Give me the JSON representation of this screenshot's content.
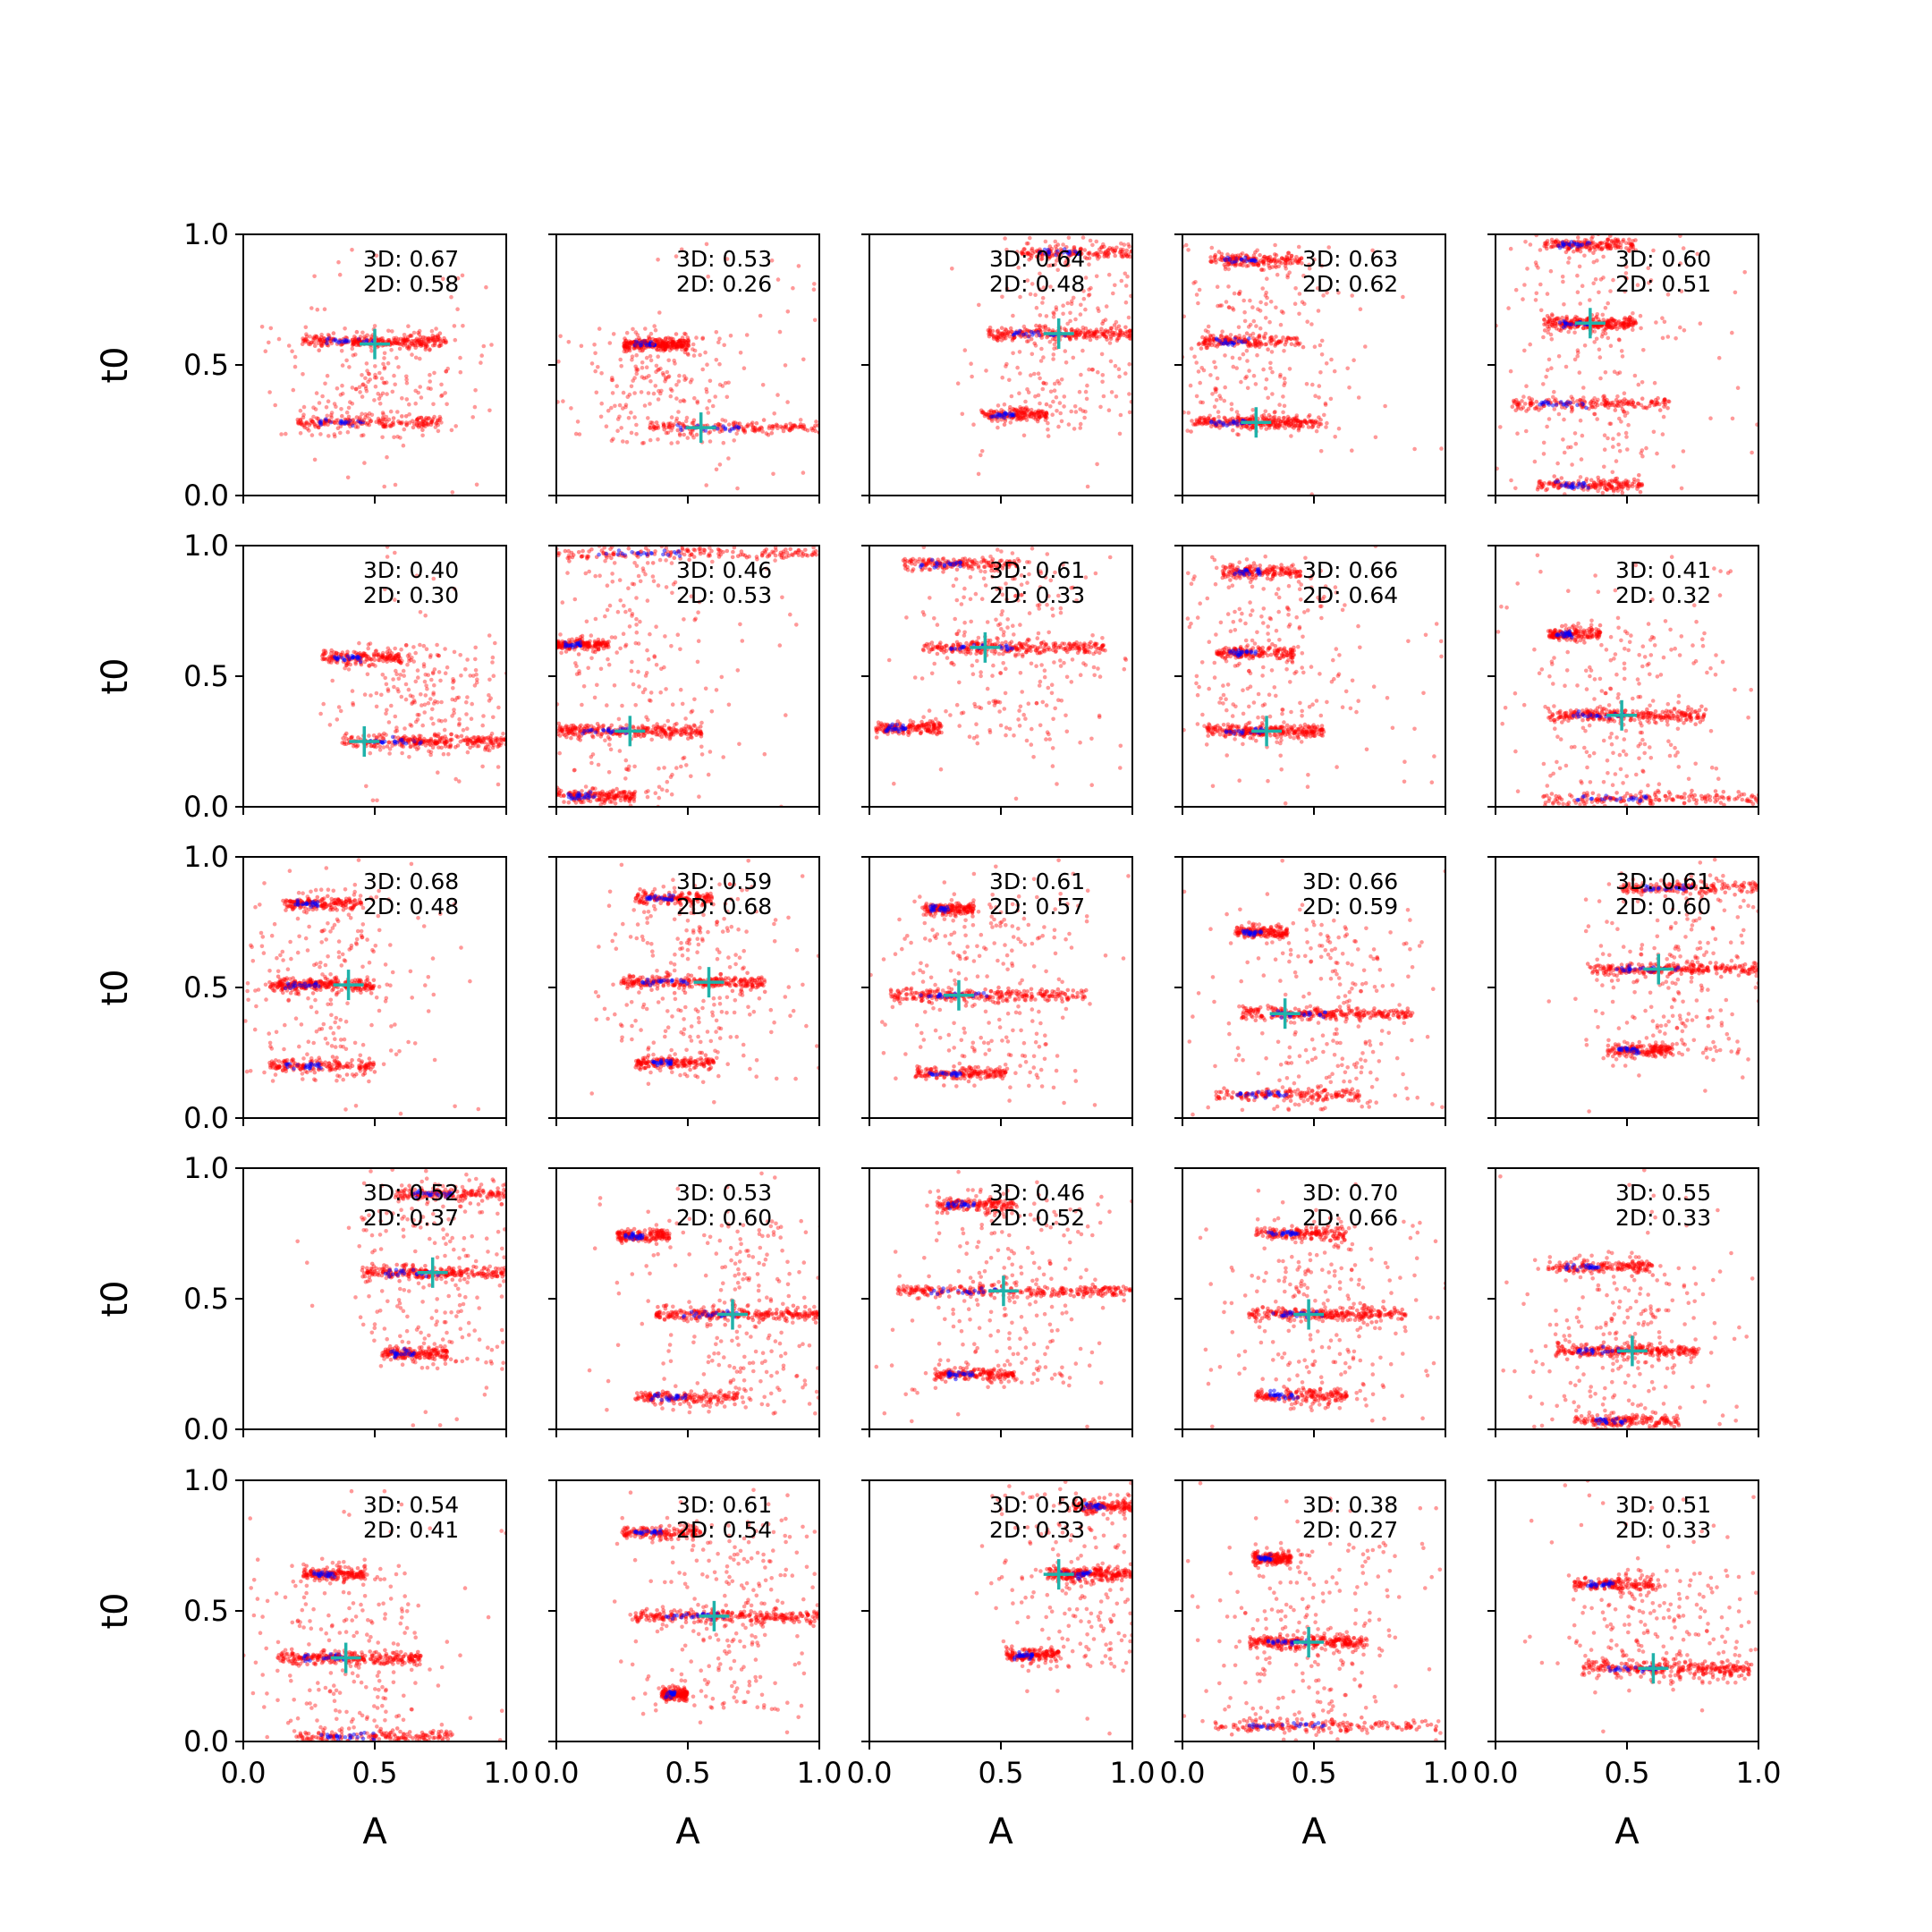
{
  "figure": {
    "xlabel": "A",
    "ylabel": "t0",
    "xlim": [
      0,
      1
    ],
    "ylim": [
      0,
      1
    ],
    "xticks": [
      "0.0",
      "0.5",
      "1.0"
    ],
    "yticks": [
      "0.0",
      "0.5",
      "1.0"
    ],
    "grid": false,
    "label_prefix_3d": "3D: ",
    "label_prefix_2d": "2D: ",
    "colors": {
      "sample_points": "#ff0000",
      "mode_points": "#0000ff",
      "estimate_marker": "#20b2aa",
      "axes": "#000000",
      "text": "#000000"
    }
  },
  "chart_data": [
    {
      "row": 1,
      "col": 1,
      "type": "scatter",
      "score_3d": "0.67",
      "score_2d": "0.58",
      "estimate": [
        0.5,
        0.58
      ],
      "a_range": [
        0.2,
        0.95
      ],
      "clusters": [
        {
          "a_center": 0.5,
          "t0": 0.59,
          "a_width": 0.55
        },
        {
          "a_center": 0.48,
          "t0": 0.28,
          "a_width": 0.55
        }
      ]
    },
    {
      "row": 1,
      "col": 2,
      "type": "scatter",
      "score_3d": "0.53",
      "score_2d": "0.26",
      "estimate": [
        0.55,
        0.26
      ],
      "a_range": [
        0.3,
        1.0
      ],
      "clusters": [
        {
          "a_center": 0.38,
          "t0": 0.58,
          "a_width": 0.25
        },
        {
          "a_center": 0.7,
          "t0": 0.26,
          "a_width": 0.7
        }
      ]
    },
    {
      "row": 1,
      "col": 3,
      "type": "scatter",
      "score_3d": "0.64",
      "score_2d": "0.48",
      "estimate": [
        0.72,
        0.62
      ],
      "a_range": [
        0.4,
        1.0
      ],
      "clusters": [
        {
          "a_center": 0.75,
          "t0": 0.62,
          "a_width": 0.6
        },
        {
          "a_center": 0.8,
          "t0": 0.93,
          "a_width": 0.45
        },
        {
          "a_center": 0.55,
          "t0": 0.31,
          "a_width": 0.25
        }
      ]
    },
    {
      "row": 1,
      "col": 4,
      "type": "scatter",
      "score_3d": "0.63",
      "score_2d": "0.62",
      "estimate": [
        0.28,
        0.28
      ],
      "a_range": [
        0.0,
        1.0
      ],
      "clusters": [
        {
          "a_center": 0.28,
          "t0": 0.28,
          "a_width": 0.5
        },
        {
          "a_center": 0.26,
          "t0": 0.59,
          "a_width": 0.4
        },
        {
          "a_center": 0.28,
          "t0": 0.9,
          "a_width": 0.35
        }
      ]
    },
    {
      "row": 1,
      "col": 5,
      "type": "scatter",
      "score_3d": "0.60",
      "score_2d": "0.51",
      "estimate": [
        0.36,
        0.66
      ],
      "a_range": [
        0.0,
        1.0
      ],
      "clusters": [
        {
          "a_center": 0.36,
          "t0": 0.66,
          "a_width": 0.35
        },
        {
          "a_center": 0.36,
          "t0": 0.35,
          "a_width": 0.6
        },
        {
          "a_center": 0.36,
          "t0": 0.96,
          "a_width": 0.35
        },
        {
          "a_center": 0.36,
          "t0": 0.04,
          "a_width": 0.4
        }
      ]
    },
    {
      "row": 2,
      "col": 1,
      "type": "scatter",
      "score_3d": "0.40",
      "score_2d": "0.30",
      "estimate": [
        0.46,
        0.25
      ],
      "a_range": [
        0.3,
        1.0
      ],
      "clusters": [
        {
          "a_center": 0.7,
          "t0": 0.25,
          "a_width": 0.65
        },
        {
          "a_center": 0.45,
          "t0": 0.57,
          "a_width": 0.3
        }
      ]
    },
    {
      "row": 2,
      "col": 2,
      "type": "scatter",
      "score_3d": "0.46",
      "score_2d": "0.53",
      "estimate": [
        0.28,
        0.29
      ],
      "a_range": [
        0.0,
        1.0
      ],
      "clusters": [
        {
          "a_center": 0.28,
          "t0": 0.29,
          "a_width": 0.55
        },
        {
          "a_center": 0.5,
          "t0": 0.97,
          "a_width": 1.0
        },
        {
          "a_center": 0.1,
          "t0": 0.62,
          "a_width": 0.2
        },
        {
          "a_center": 0.15,
          "t0": 0.04,
          "a_width": 0.3
        }
      ]
    },
    {
      "row": 2,
      "col": 3,
      "type": "scatter",
      "score_3d": "0.61",
      "score_2d": "0.33",
      "estimate": [
        0.44,
        0.61
      ],
      "a_range": [
        0.0,
        1.0
      ],
      "clusters": [
        {
          "a_center": 0.55,
          "t0": 0.61,
          "a_width": 0.7
        },
        {
          "a_center": 0.35,
          "t0": 0.93,
          "a_width": 0.45
        },
        {
          "a_center": 0.15,
          "t0": 0.3,
          "a_width": 0.25
        }
      ]
    },
    {
      "row": 2,
      "col": 4,
      "type": "scatter",
      "score_3d": "0.66",
      "score_2d": "0.64",
      "estimate": [
        0.32,
        0.29
      ],
      "a_range": [
        0.0,
        1.0
      ],
      "clusters": [
        {
          "a_center": 0.32,
          "t0": 0.29,
          "a_width": 0.45
        },
        {
          "a_center": 0.28,
          "t0": 0.59,
          "a_width": 0.3
        },
        {
          "a_center": 0.3,
          "t0": 0.9,
          "a_width": 0.3
        }
      ]
    },
    {
      "row": 2,
      "col": 5,
      "type": "scatter",
      "score_3d": "0.41",
      "score_2d": "0.32",
      "estimate": [
        0.48,
        0.35
      ],
      "a_range": [
        0.0,
        1.0
      ],
      "clusters": [
        {
          "a_center": 0.5,
          "t0": 0.35,
          "a_width": 0.6
        },
        {
          "a_center": 0.3,
          "t0": 0.66,
          "a_width": 0.2
        },
        {
          "a_center": 0.6,
          "t0": 0.03,
          "a_width": 0.85
        }
      ]
    },
    {
      "row": 3,
      "col": 1,
      "type": "scatter",
      "score_3d": "0.68",
      "score_2d": "0.48",
      "estimate": [
        0.4,
        0.51
      ],
      "a_range": [
        0.0,
        0.9
      ],
      "clusters": [
        {
          "a_center": 0.3,
          "t0": 0.51,
          "a_width": 0.4
        },
        {
          "a_center": 0.3,
          "t0": 0.2,
          "a_width": 0.4
        },
        {
          "a_center": 0.3,
          "t0": 0.82,
          "a_width": 0.3
        }
      ]
    },
    {
      "row": 3,
      "col": 2,
      "type": "scatter",
      "score_3d": "0.59",
      "score_2d": "0.68",
      "estimate": [
        0.58,
        0.52
      ],
      "a_range": [
        0.1,
        1.0
      ],
      "clusters": [
        {
          "a_center": 0.52,
          "t0": 0.52,
          "a_width": 0.55
        },
        {
          "a_center": 0.45,
          "t0": 0.21,
          "a_width": 0.3
        },
        {
          "a_center": 0.45,
          "t0": 0.84,
          "a_width": 0.3
        }
      ]
    },
    {
      "row": 3,
      "col": 3,
      "type": "scatter",
      "score_3d": "0.61",
      "score_2d": "0.57",
      "estimate": [
        0.34,
        0.47
      ],
      "a_range": [
        0.0,
        1.0
      ],
      "clusters": [
        {
          "a_center": 0.45,
          "t0": 0.47,
          "a_width": 0.75
        },
        {
          "a_center": 0.35,
          "t0": 0.17,
          "a_width": 0.35
        },
        {
          "a_center": 0.3,
          "t0": 0.8,
          "a_width": 0.2
        }
      ]
    },
    {
      "row": 3,
      "col": 4,
      "type": "scatter",
      "score_3d": "0.66",
      "score_2d": "0.59",
      "estimate": [
        0.39,
        0.4
      ],
      "a_range": [
        0.0,
        1.0
      ],
      "clusters": [
        {
          "a_center": 0.55,
          "t0": 0.4,
          "a_width": 0.65
        },
        {
          "a_center": 0.4,
          "t0": 0.09,
          "a_width": 0.55
        },
        {
          "a_center": 0.3,
          "t0": 0.71,
          "a_width": 0.2
        }
      ]
    },
    {
      "row": 3,
      "col": 5,
      "type": "scatter",
      "score_3d": "0.61",
      "score_2d": "0.60",
      "estimate": [
        0.62,
        0.57
      ],
      "a_range": [
        0.3,
        1.0
      ],
      "clusters": [
        {
          "a_center": 0.7,
          "t0": 0.57,
          "a_width": 0.7
        },
        {
          "a_center": 0.75,
          "t0": 0.88,
          "a_width": 0.55
        },
        {
          "a_center": 0.55,
          "t0": 0.26,
          "a_width": 0.25
        }
      ]
    },
    {
      "row": 4,
      "col": 1,
      "type": "scatter",
      "score_3d": "0.52",
      "score_2d": "0.37",
      "estimate": [
        0.72,
        0.6
      ],
      "a_range": [
        0.4,
        1.0
      ],
      "clusters": [
        {
          "a_center": 0.75,
          "t0": 0.6,
          "a_width": 0.6
        },
        {
          "a_center": 0.8,
          "t0": 0.9,
          "a_width": 0.45
        },
        {
          "a_center": 0.65,
          "t0": 0.29,
          "a_width": 0.25
        }
      ]
    },
    {
      "row": 4,
      "col": 2,
      "type": "scatter",
      "score_3d": "0.53",
      "score_2d": "0.60",
      "estimate": [
        0.67,
        0.44
      ],
      "a_range": [
        0.1,
        1.0
      ],
      "clusters": [
        {
          "a_center": 0.7,
          "t0": 0.44,
          "a_width": 0.65
        },
        {
          "a_center": 0.33,
          "t0": 0.74,
          "a_width": 0.2
        },
        {
          "a_center": 0.5,
          "t0": 0.12,
          "a_width": 0.4
        }
      ]
    },
    {
      "row": 4,
      "col": 3,
      "type": "scatter",
      "score_3d": "0.46",
      "score_2d": "0.52",
      "estimate": [
        0.51,
        0.53
      ],
      "a_range": [
        0.0,
        1.0
      ],
      "clusters": [
        {
          "a_center": 0.55,
          "t0": 0.53,
          "a_width": 0.9
        },
        {
          "a_center": 0.4,
          "t0": 0.21,
          "a_width": 0.3
        },
        {
          "a_center": 0.4,
          "t0": 0.86,
          "a_width": 0.3
        }
      ]
    },
    {
      "row": 4,
      "col": 4,
      "type": "scatter",
      "score_3d": "0.70",
      "score_2d": "0.66",
      "estimate": [
        0.48,
        0.44
      ],
      "a_range": [
        0.0,
        1.0
      ],
      "clusters": [
        {
          "a_center": 0.55,
          "t0": 0.44,
          "a_width": 0.6
        },
        {
          "a_center": 0.45,
          "t0": 0.75,
          "a_width": 0.35
        },
        {
          "a_center": 0.45,
          "t0": 0.13,
          "a_width": 0.35
        }
      ]
    },
    {
      "row": 4,
      "col": 5,
      "type": "scatter",
      "score_3d": "0.55",
      "score_2d": "0.33",
      "estimate": [
        0.52,
        0.3
      ],
      "a_range": [
        0.0,
        1.0
      ],
      "clusters": [
        {
          "a_center": 0.5,
          "t0": 0.3,
          "a_width": 0.55
        },
        {
          "a_center": 0.4,
          "t0": 0.62,
          "a_width": 0.4
        },
        {
          "a_center": 0.5,
          "t0": 0.03,
          "a_width": 0.4
        }
      ]
    },
    {
      "row": 5,
      "col": 1,
      "type": "scatter",
      "score_3d": "0.54",
      "score_2d": "0.41",
      "estimate": [
        0.39,
        0.32
      ],
      "a_range": [
        0.0,
        1.0
      ],
      "clusters": [
        {
          "a_center": 0.4,
          "t0": 0.32,
          "a_width": 0.55
        },
        {
          "a_center": 0.35,
          "t0": 0.64,
          "a_width": 0.25
        },
        {
          "a_center": 0.5,
          "t0": 0.02,
          "a_width": 0.6
        }
      ]
    },
    {
      "row": 5,
      "col": 2,
      "type": "scatter",
      "score_3d": "0.61",
      "score_2d": "0.54",
      "estimate": [
        0.6,
        0.48
      ],
      "a_range": [
        0.2,
        1.0
      ],
      "clusters": [
        {
          "a_center": 0.65,
          "t0": 0.48,
          "a_width": 0.7
        },
        {
          "a_center": 0.4,
          "t0": 0.8,
          "a_width": 0.3
        },
        {
          "a_center": 0.45,
          "t0": 0.18,
          "a_width": 0.1
        }
      ]
    },
    {
      "row": 5,
      "col": 3,
      "type": "scatter",
      "score_3d": "0.59",
      "score_2d": "0.33",
      "estimate": [
        0.72,
        0.64
      ],
      "a_range": [
        0.4,
        1.0
      ],
      "clusters": [
        {
          "a_center": 0.85,
          "t0": 0.64,
          "a_width": 0.35
        },
        {
          "a_center": 0.9,
          "t0": 0.9,
          "a_width": 0.25
        },
        {
          "a_center": 0.62,
          "t0": 0.33,
          "a_width": 0.2
        }
      ]
    },
    {
      "row": 5,
      "col": 4,
      "type": "scatter",
      "score_3d": "0.38",
      "score_2d": "0.27",
      "estimate": [
        0.48,
        0.38
      ],
      "a_range": [
        0.0,
        1.0
      ],
      "clusters": [
        {
          "a_center": 0.48,
          "t0": 0.38,
          "a_width": 0.45
        },
        {
          "a_center": 0.55,
          "t0": 0.06,
          "a_width": 0.85
        },
        {
          "a_center": 0.34,
          "t0": 0.7,
          "a_width": 0.15
        }
      ]
    },
    {
      "row": 5,
      "col": 5,
      "type": "scatter",
      "score_3d": "0.51",
      "score_2d": "0.33",
      "estimate": [
        0.6,
        0.28
      ],
      "a_range": [
        0.1,
        1.0
      ],
      "clusters": [
        {
          "a_center": 0.65,
          "t0": 0.28,
          "a_width": 0.65
        },
        {
          "a_center": 0.45,
          "t0": 0.6,
          "a_width": 0.3
        }
      ]
    }
  ]
}
